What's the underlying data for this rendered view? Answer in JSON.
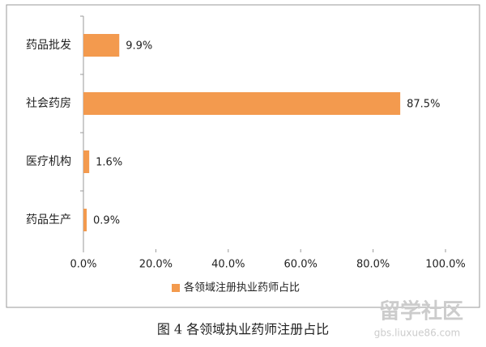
{
  "chart_data": {
    "type": "bar",
    "orientation": "horizontal",
    "categories": [
      "药品批发",
      "社会药房",
      "医疗机构",
      "药品生产"
    ],
    "series": [
      {
        "name": "各领域注册执业药师占比",
        "color": "#f39a4e",
        "values": [
          9.9,
          87.5,
          1.6,
          0.9
        ],
        "value_labels": [
          "9.9%",
          "87.5%",
          "1.6%",
          "0.9%"
        ]
      }
    ],
    "xlim": [
      0,
      100
    ],
    "xticks": [
      {
        "value": 0,
        "label": "0.0%"
      },
      {
        "value": 20,
        "label": "20.0%"
      },
      {
        "value": 40,
        "label": "40.0%"
      },
      {
        "value": 60,
        "label": "60.0%"
      },
      {
        "value": 80,
        "label": "80.0%"
      },
      {
        "value": 100,
        "label": "100.0%"
      }
    ],
    "legend": "bottom",
    "caption": "图 4 各领域执业药师注册占比"
  },
  "watermark": [
    "留学社区",
    "gbs.liuxue86.com"
  ]
}
